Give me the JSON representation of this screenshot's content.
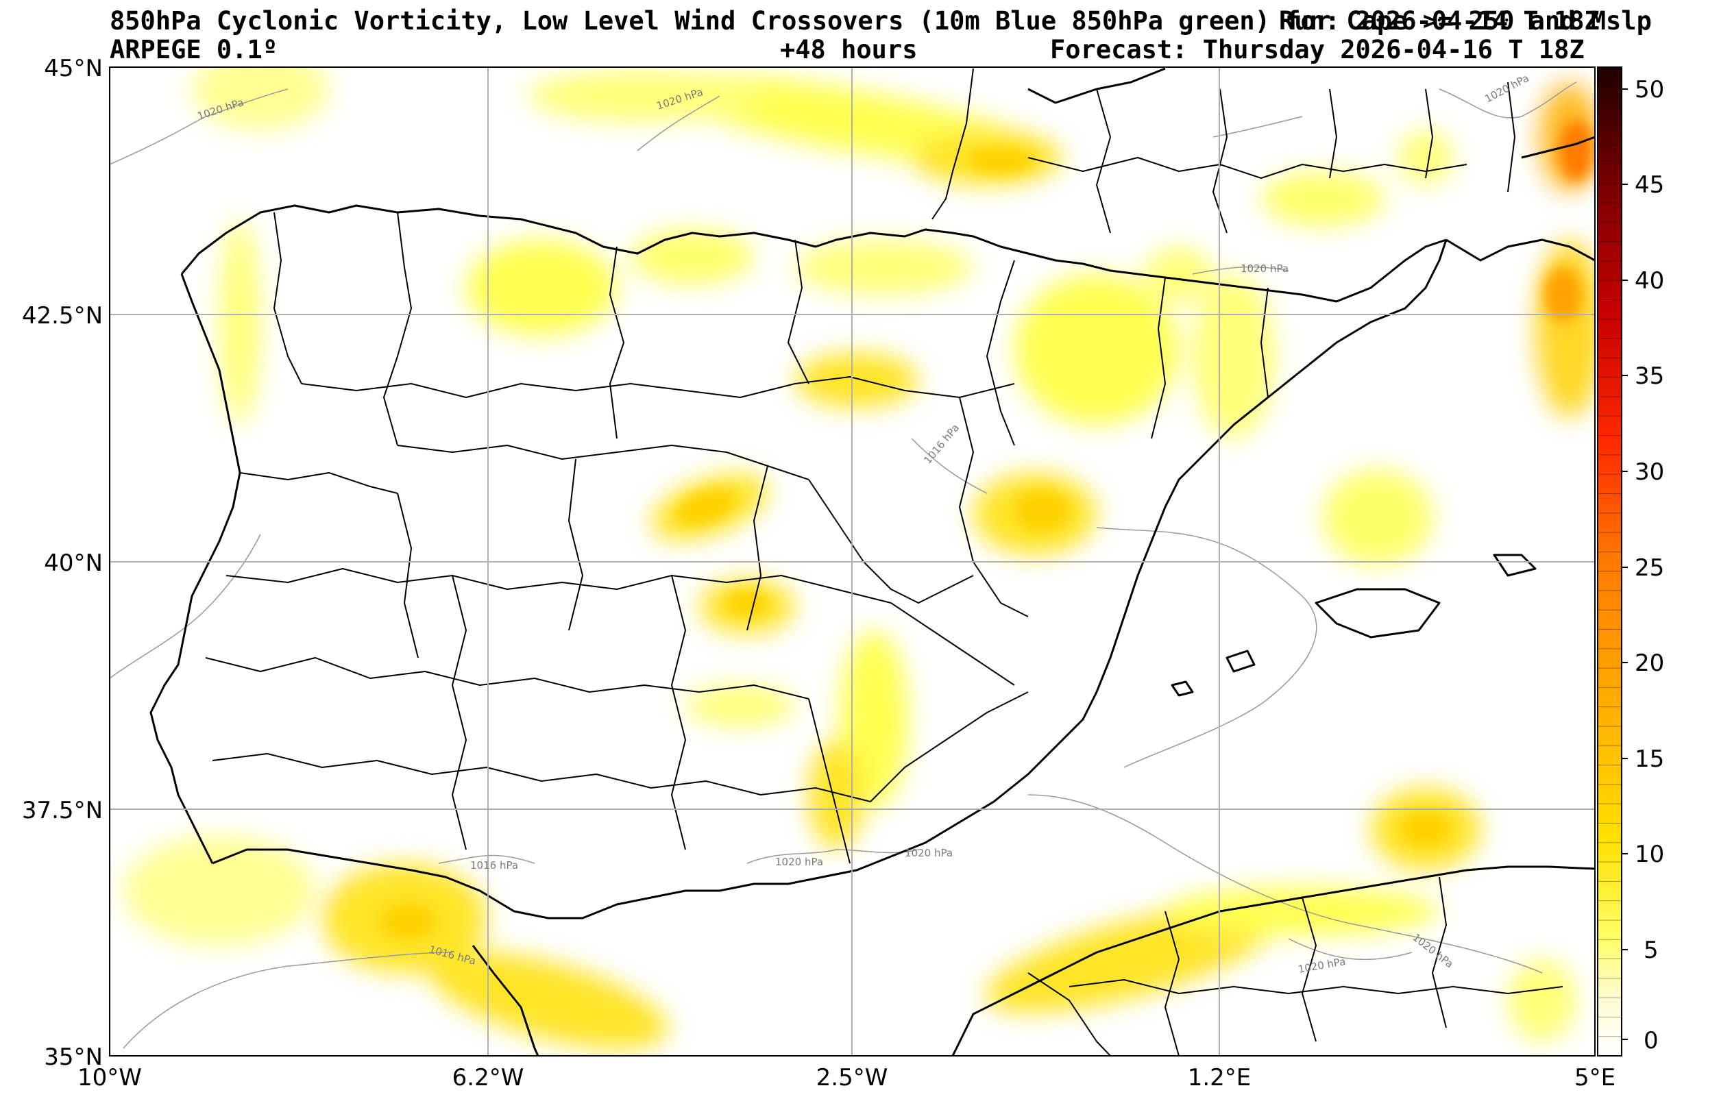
{
  "header": {
    "title_left": "850hPa Cyclonic Vorticity, Low Level Wind Crossovers (10m Blue 850hPa green) for Cape >= 250 and Mslp",
    "title_right": "Run: 2026-04-14 T 18Z",
    "model": "ARPEGE 0.1º",
    "lead_time": "+48 hours",
    "forecast": "Forecast: Thursday 2026-04-16 T 18Z"
  },
  "map": {
    "lat_labels": [
      "45°N",
      "42.5°N",
      "40°N",
      "37.5°N",
      "35°N"
    ],
    "lon_labels": [
      "10°W",
      "6.2°W",
      "2.5°W",
      "1.2°E",
      "5°E"
    ],
    "isobar_labels": [
      {
        "text": "1020 hPa"
      },
      {
        "text": "1020 hPa"
      },
      {
        "text": "1020 hPa"
      },
      {
        "text": "1020 hPa"
      },
      {
        "text": "1016 hPa"
      },
      {
        "text": "1016 hPa"
      },
      {
        "text": "1016 hPa"
      },
      {
        "text": "1020 hPa"
      },
      {
        "text": "1020 hPa"
      },
      {
        "text": "1020 hPa"
      },
      {
        "text": "1020 hPa"
      }
    ]
  },
  "colorbar": {
    "ticks": [
      "50",
      "45",
      "40",
      "35",
      "30",
      "25",
      "20",
      "15",
      "10",
      "5",
      "0"
    ],
    "min": 0,
    "max": 51,
    "colors": [
      "#ffffff",
      "#fffbd0",
      "#ffff66",
      "#ffe000",
      "#ffb000",
      "#ff7a00",
      "#ff2a00",
      "#c80000",
      "#7a0000",
      "#200000"
    ]
  }
}
